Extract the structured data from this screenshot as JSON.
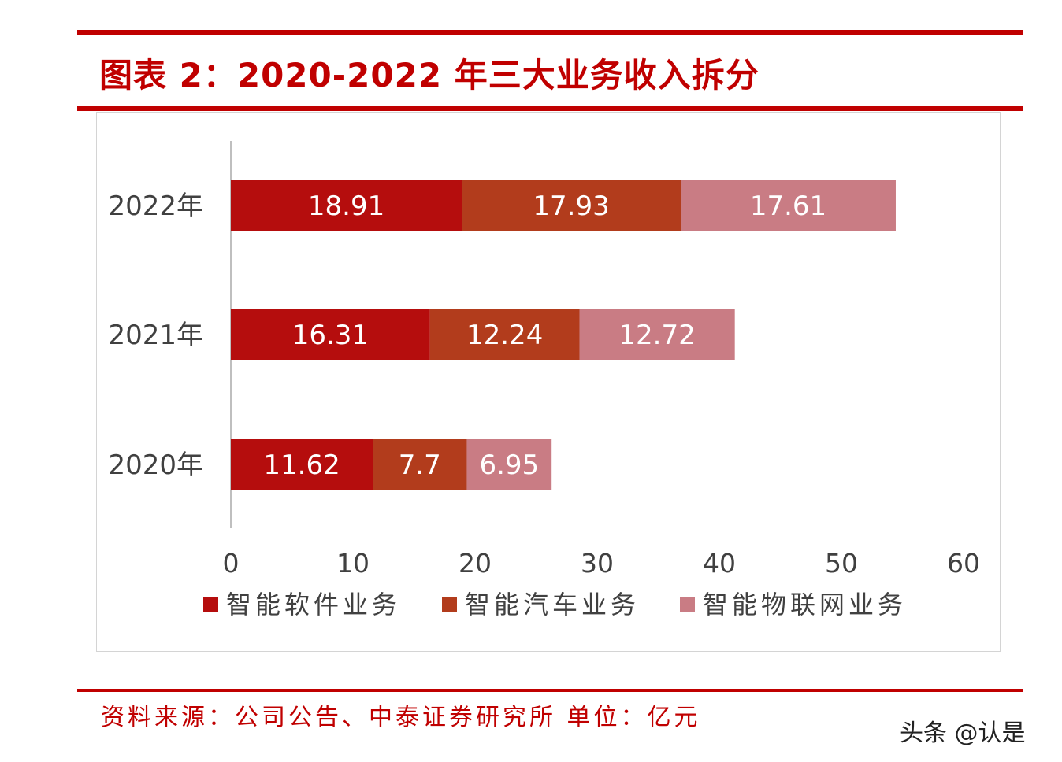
{
  "title": "图表 2：2020-2022 年三大业务收入拆分",
  "source": "资料来源：公司公告、中泰证券研究所 单位：亿元",
  "watermark": "头条 @认是",
  "colors": {
    "accent": "#c00000",
    "series": [
      "#b50d0d",
      "#b23c1c",
      "#c97c84"
    ]
  },
  "chart_data": {
    "type": "bar",
    "orientation": "horizontal",
    "stacked": true,
    "categories": [
      "2022年",
      "2021年",
      "2020年"
    ],
    "series": [
      {
        "name": "智能软件业务",
        "values": [
          18.91,
          16.31,
          11.62
        ],
        "labels": [
          "18.91",
          "16.31",
          "11.62"
        ]
      },
      {
        "name": "智能汽车业务",
        "values": [
          17.93,
          12.24,
          7.7
        ],
        "labels": [
          "17.93",
          "12.24",
          "7.7"
        ]
      },
      {
        "name": "智能物联网业务",
        "values": [
          17.61,
          12.72,
          6.95
        ],
        "labels": [
          "17.61",
          "12.72",
          "6.95"
        ]
      }
    ],
    "xlim": [
      0,
      60
    ],
    "xticks": [
      "0",
      "10",
      "20",
      "30",
      "40",
      "50",
      "60"
    ],
    "grid": false,
    "legend_position": "bottom"
  }
}
